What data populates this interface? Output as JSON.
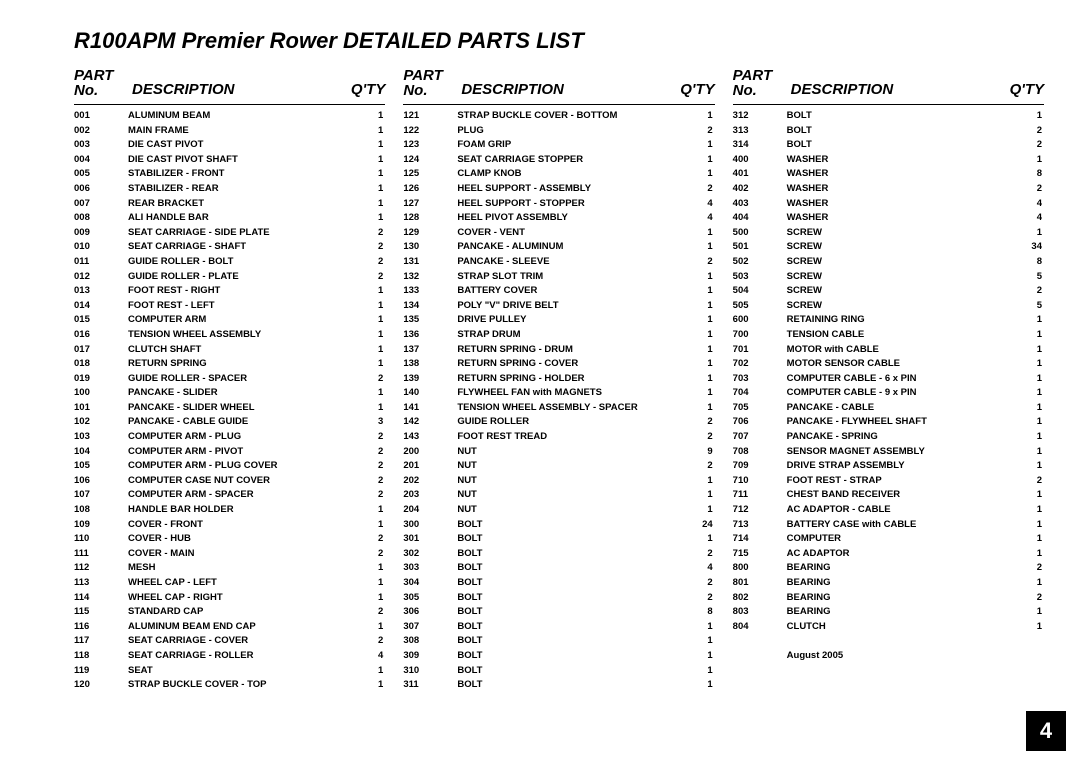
{
  "title": "R100APM Premier Rower DETAILED PARTS LIST",
  "headers": {
    "part_line1": "PART",
    "part_line2": "No.",
    "desc": "DESCRIPTION",
    "qty": "Q'TY"
  },
  "footer_date": "August 2005",
  "page_number": "4",
  "columns": [
    [
      [
        "001",
        "ALUMINUM BEAM",
        "1"
      ],
      [
        "002",
        "MAIN FRAME",
        "1"
      ],
      [
        "003",
        "DIE CAST PIVOT",
        "1"
      ],
      [
        "004",
        "DIE CAST PIVOT SHAFT",
        "1"
      ],
      [
        "005",
        "STABILIZER - FRONT",
        "1"
      ],
      [
        "006",
        "STABILIZER - REAR",
        "1"
      ],
      [
        "007",
        "REAR BRACKET",
        "1"
      ],
      [
        "008",
        "ALI HANDLE BAR",
        "1"
      ],
      [
        "009",
        "SEAT CARRIAGE - SIDE PLATE",
        "2"
      ],
      [
        "010",
        "SEAT CARRIAGE - SHAFT",
        "2"
      ],
      [
        "011",
        "GUIDE ROLLER - BOLT",
        "2"
      ],
      [
        "012",
        "GUIDE ROLLER - PLATE",
        "2"
      ],
      [
        "013",
        "FOOT REST - RIGHT",
        "1"
      ],
      [
        "014",
        "FOOT REST - LEFT",
        "1"
      ],
      [
        "015",
        "COMPUTER ARM",
        "1"
      ],
      [
        "016",
        "TENSION WHEEL ASSEMBLY",
        "1"
      ],
      [
        "017",
        "CLUTCH SHAFT",
        "1"
      ],
      [
        "018",
        "RETURN SPRING",
        "1"
      ],
      [
        "019",
        "GUIDE ROLLER - SPACER",
        "2"
      ],
      [
        "100",
        "PANCAKE - SLIDER",
        "1"
      ],
      [
        "101",
        "PANCAKE - SLIDER WHEEL",
        "1"
      ],
      [
        "102",
        "PANCAKE - CABLE GUIDE",
        "3"
      ],
      [
        "103",
        "COMPUTER ARM - PLUG",
        "2"
      ],
      [
        "104",
        "COMPUTER ARM - PIVOT",
        "2"
      ],
      [
        "105",
        "COMPUTER ARM - PLUG COVER",
        "2"
      ],
      [
        "106",
        "COMPUTER CASE NUT COVER",
        "2"
      ],
      [
        "107",
        "COMPUTER ARM - SPACER",
        "2"
      ],
      [
        "108",
        "HANDLE BAR HOLDER",
        "1"
      ],
      [
        "109",
        "COVER - FRONT",
        "1"
      ],
      [
        "110",
        "COVER - HUB",
        "2"
      ],
      [
        "111",
        "COVER - MAIN",
        "2"
      ],
      [
        "112",
        "MESH",
        "1"
      ],
      [
        "113",
        "WHEEL CAP - LEFT",
        "1"
      ],
      [
        "114",
        "WHEEL CAP - RIGHT",
        "1"
      ],
      [
        "115",
        "STANDARD CAP",
        "2"
      ],
      [
        "116",
        "ALUMINUM BEAM END CAP",
        "1"
      ],
      [
        "117",
        "SEAT CARRIAGE - COVER",
        "2"
      ],
      [
        "118",
        "SEAT CARRIAGE - ROLLER",
        "4"
      ],
      [
        "119",
        "SEAT",
        "1"
      ],
      [
        "120",
        "STRAP BUCKLE COVER - TOP",
        "1"
      ]
    ],
    [
      [
        "121",
        "STRAP BUCKLE COVER - BOTTOM",
        "1"
      ],
      [
        "122",
        "PLUG",
        "2"
      ],
      [
        "123",
        "FOAM GRIP",
        "1"
      ],
      [
        "124",
        "SEAT CARRIAGE STOPPER",
        "1"
      ],
      [
        "125",
        "CLAMP KNOB",
        "1"
      ],
      [
        "126",
        "HEEL SUPPORT - ASSEMBLY",
        "2"
      ],
      [
        "127",
        "HEEL SUPPORT - STOPPER",
        "4"
      ],
      [
        "128",
        "HEEL PIVOT ASSEMBLY",
        "4"
      ],
      [
        "129",
        "COVER - VENT",
        "1"
      ],
      [
        "130",
        "PANCAKE - ALUMINUM",
        "1"
      ],
      [
        "131",
        "PANCAKE - SLEEVE",
        "2"
      ],
      [
        "132",
        "STRAP SLOT TRIM",
        "1"
      ],
      [
        "133",
        "BATTERY COVER",
        "1"
      ],
      [
        "134",
        "POLY \"V\" DRIVE BELT",
        "1"
      ],
      [
        "135",
        "DRIVE PULLEY",
        "1"
      ],
      [
        "136",
        "STRAP DRUM",
        "1"
      ],
      [
        "137",
        "RETURN SPRING - DRUM",
        "1"
      ],
      [
        "138",
        "RETURN SPRING - COVER",
        "1"
      ],
      [
        "139",
        "RETURN SPRING - HOLDER",
        "1"
      ],
      [
        "140",
        "FLYWHEEL FAN with MAGNETS",
        "1"
      ],
      [
        "141",
        "TENSION WHEEL ASSEMBLY - SPACER",
        "1"
      ],
      [
        "142",
        "GUIDE ROLLER",
        "2"
      ],
      [
        "143",
        "FOOT REST TREAD",
        "2"
      ],
      [
        "200",
        "NUT",
        "9"
      ],
      [
        "201",
        "NUT",
        "2"
      ],
      [
        "202",
        "NUT",
        "1"
      ],
      [
        "203",
        "NUT",
        "1"
      ],
      [
        "204",
        "NUT",
        "1"
      ],
      [
        "300",
        "BOLT",
        "24"
      ],
      [
        "301",
        "BOLT",
        "1"
      ],
      [
        "302",
        "BOLT",
        "2"
      ],
      [
        "303",
        "BOLT",
        "4"
      ],
      [
        "304",
        "BOLT",
        "2"
      ],
      [
        "305",
        "BOLT",
        "2"
      ],
      [
        "306",
        "BOLT",
        "8"
      ],
      [
        "307",
        "BOLT",
        "1"
      ],
      [
        "308",
        "BOLT",
        "1"
      ],
      [
        "309",
        "BOLT",
        "1"
      ],
      [
        "310",
        "BOLT",
        "1"
      ],
      [
        "311",
        "BOLT",
        "1"
      ]
    ],
    [
      [
        "312",
        "BOLT",
        "1"
      ],
      [
        "313",
        "BOLT",
        "2"
      ],
      [
        "314",
        "BOLT",
        "2"
      ],
      [
        "400",
        "WASHER",
        "1"
      ],
      [
        "401",
        "WASHER",
        "8"
      ],
      [
        "402",
        "WASHER",
        "2"
      ],
      [
        "403",
        "WASHER",
        "4"
      ],
      [
        "404",
        "WASHER",
        "4"
      ],
      [
        "500",
        "SCREW",
        "1"
      ],
      [
        "501",
        "SCREW",
        "34"
      ],
      [
        "502",
        "SCREW",
        "8"
      ],
      [
        "503",
        "SCREW",
        "5"
      ],
      [
        "504",
        "SCREW",
        "2"
      ],
      [
        "505",
        "SCREW",
        "5"
      ],
      [
        "600",
        "RETAINING RING",
        "1"
      ],
      [
        "700",
        "TENSION CABLE",
        "1"
      ],
      [
        "701",
        "MOTOR with CABLE",
        "1"
      ],
      [
        "702",
        "MOTOR SENSOR CABLE",
        "1"
      ],
      [
        "703",
        "COMPUTER CABLE - 6 x PIN",
        "1"
      ],
      [
        "704",
        "COMPUTER CABLE - 9 x PIN",
        "1"
      ],
      [
        "705",
        "PANCAKE - CABLE",
        "1"
      ],
      [
        "706",
        "PANCAKE - FLYWHEEL SHAFT",
        "1"
      ],
      [
        "707",
        "PANCAKE - SPRING",
        "1"
      ],
      [
        "708",
        "SENSOR MAGNET ASSEMBLY",
        "1"
      ],
      [
        "709",
        "DRIVE STRAP ASSEMBLY",
        "1"
      ],
      [
        "710",
        "FOOT REST - STRAP",
        "2"
      ],
      [
        "711",
        "CHEST BAND RECEIVER",
        "1"
      ],
      [
        "712",
        "AC ADAPTOR - CABLE",
        "1"
      ],
      [
        "713",
        "BATTERY CASE with CABLE",
        "1"
      ],
      [
        "714",
        "COMPUTER",
        "1"
      ],
      [
        "715",
        "AC ADAPTOR",
        "1"
      ],
      [
        "800",
        "BEARING",
        "2"
      ],
      [
        "801",
        "BEARING",
        "1"
      ],
      [
        "802",
        "BEARING",
        "2"
      ],
      [
        "803",
        "BEARING",
        "1"
      ],
      [
        "804",
        "CLUTCH",
        "1"
      ]
    ]
  ]
}
